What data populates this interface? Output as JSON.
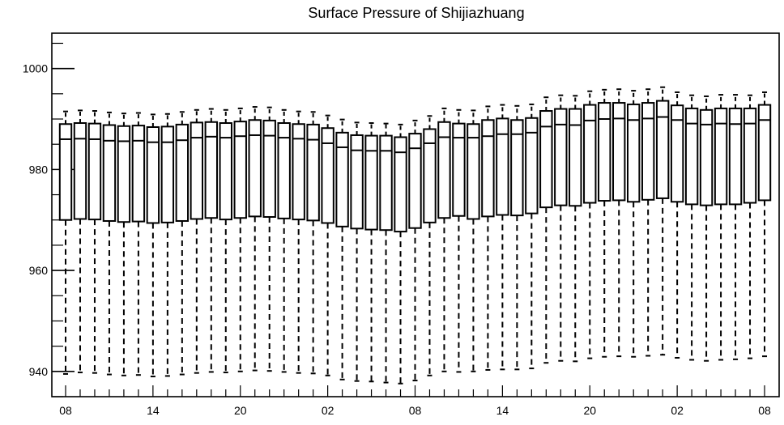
{
  "chart_data": {
    "type": "boxplot",
    "title": "Surface Pressure of Shijiazhuang",
    "xlabel": "",
    "ylabel": "",
    "ylim": [
      935,
      1007
    ],
    "x_tick_labels": [
      "08",
      "14",
      "20",
      "02",
      "08",
      "14",
      "20",
      "02",
      "08"
    ],
    "y_tick_labels": [
      "940",
      "960",
      "980",
      "1000"
    ],
    "y_ticks": [
      940,
      960,
      980,
      1000
    ],
    "grid": false,
    "colors": {
      "box_fill": "#ffffff",
      "stroke": "#000000"
    },
    "boxes": [
      {
        "x": 0,
        "whisker_low": 939.5,
        "q1": 970.0,
        "median": 986.0,
        "q3": 989.0,
        "whisker_high": 991.5
      },
      {
        "x": 1,
        "whisker_low": 939.8,
        "q1": 970.2,
        "median": 986.1,
        "q3": 989.2,
        "whisker_high": 991.7
      },
      {
        "x": 2,
        "whisker_low": 939.7,
        "q1": 970.1,
        "median": 986.0,
        "q3": 989.1,
        "whisker_high": 991.6
      },
      {
        "x": 3,
        "whisker_low": 939.4,
        "q1": 969.8,
        "median": 985.7,
        "q3": 988.8,
        "whisker_high": 991.3
      },
      {
        "x": 4,
        "whisker_low": 939.2,
        "q1": 969.6,
        "median": 985.6,
        "q3": 988.6,
        "whisker_high": 991.1
      },
      {
        "x": 5,
        "whisker_low": 939.3,
        "q1": 969.7,
        "median": 985.7,
        "q3": 988.7,
        "whisker_high": 991.2
      },
      {
        "x": 6,
        "whisker_low": 939.0,
        "q1": 969.4,
        "median": 985.4,
        "q3": 988.4,
        "whisker_high": 990.9
      },
      {
        "x": 7,
        "whisker_low": 939.1,
        "q1": 969.5,
        "median": 985.4,
        "q3": 988.5,
        "whisker_high": 991.0
      },
      {
        "x": 8,
        "whisker_low": 939.4,
        "q1": 969.8,
        "median": 985.8,
        "q3": 988.9,
        "whisker_high": 991.4
      },
      {
        "x": 9,
        "whisker_low": 939.7,
        "q1": 970.2,
        "median": 986.3,
        "q3": 989.3,
        "whisker_high": 991.8
      },
      {
        "x": 10,
        "whisker_low": 939.9,
        "q1": 970.4,
        "median": 986.5,
        "q3": 989.4,
        "whisker_high": 992.0
      },
      {
        "x": 11,
        "whisker_low": 939.8,
        "q1": 970.1,
        "median": 986.3,
        "q3": 989.2,
        "whisker_high": 991.8
      },
      {
        "x": 12,
        "whisker_low": 940.0,
        "q1": 970.4,
        "median": 986.6,
        "q3": 989.5,
        "whisker_high": 992.1
      },
      {
        "x": 13,
        "whisker_low": 940.2,
        "q1": 970.7,
        "median": 986.8,
        "q3": 989.8,
        "whisker_high": 992.4
      },
      {
        "x": 14,
        "whisker_low": 940.1,
        "q1": 970.6,
        "median": 986.7,
        "q3": 989.7,
        "whisker_high": 992.3
      },
      {
        "x": 15,
        "whisker_low": 939.9,
        "q1": 970.3,
        "median": 986.3,
        "q3": 989.2,
        "whisker_high": 991.8
      },
      {
        "x": 16,
        "whisker_low": 939.7,
        "q1": 970.1,
        "median": 986.1,
        "q3": 989.0,
        "whisker_high": 991.5
      },
      {
        "x": 17,
        "whisker_low": 939.6,
        "q1": 969.9,
        "median": 985.9,
        "q3": 988.9,
        "whisker_high": 991.4
      },
      {
        "x": 18,
        "whisker_low": 939.2,
        "q1": 969.4,
        "median": 985.2,
        "q3": 988.2,
        "whisker_high": 990.7
      },
      {
        "x": 19,
        "whisker_low": 938.4,
        "q1": 968.7,
        "median": 984.4,
        "q3": 987.3,
        "whisker_high": 989.9
      },
      {
        "x": 20,
        "whisker_low": 938.1,
        "q1": 968.3,
        "median": 983.8,
        "q3": 986.8,
        "whisker_high": 989.3
      },
      {
        "x": 21,
        "whisker_low": 938.0,
        "q1": 968.1,
        "median": 983.7,
        "q3": 986.7,
        "whisker_high": 989.2
      },
      {
        "x": 22,
        "whisker_low": 937.8,
        "q1": 968.0,
        "median": 983.7,
        "q3": 986.7,
        "whisker_high": 989.1
      },
      {
        "x": 23,
        "whisker_low": 937.6,
        "q1": 967.7,
        "median": 983.4,
        "q3": 986.4,
        "whisker_high": 988.9
      },
      {
        "x": 24,
        "whisker_low": 938.2,
        "q1": 968.4,
        "median": 984.2,
        "q3": 987.1,
        "whisker_high": 989.7
      },
      {
        "x": 25,
        "whisker_low": 939.2,
        "q1": 969.5,
        "median": 985.2,
        "q3": 988.0,
        "whisker_high": 990.6
      },
      {
        "x": 26,
        "whisker_low": 940.0,
        "q1": 970.4,
        "median": 986.4,
        "q3": 989.4,
        "whisker_high": 992.1
      },
      {
        "x": 27,
        "whisker_low": 939.9,
        "q1": 970.8,
        "median": 986.3,
        "q3": 989.1,
        "whisker_high": 991.8
      },
      {
        "x": 28,
        "whisker_low": 940.0,
        "q1": 970.2,
        "median": 986.3,
        "q3": 989.0,
        "whisker_high": 991.7
      },
      {
        "x": 29,
        "whisker_low": 940.3,
        "q1": 970.7,
        "median": 986.6,
        "q3": 989.8,
        "whisker_high": 992.5
      },
      {
        "x": 30,
        "whisker_low": 940.4,
        "q1": 971.0,
        "median": 987.0,
        "q3": 990.1,
        "whisker_high": 992.8
      },
      {
        "x": 31,
        "whisker_low": 940.4,
        "q1": 970.9,
        "median": 987.0,
        "q3": 989.8,
        "whisker_high": 992.6
      },
      {
        "x": 32,
        "whisker_low": 940.6,
        "q1": 971.3,
        "median": 987.3,
        "q3": 990.2,
        "whisker_high": 992.9
      },
      {
        "x": 33,
        "whisker_low": 941.7,
        "q1": 972.5,
        "median": 988.5,
        "q3": 991.6,
        "whisker_high": 994.3
      },
      {
        "x": 34,
        "whisker_low": 942.1,
        "q1": 972.9,
        "median": 988.9,
        "q3": 992.0,
        "whisker_high": 994.7
      },
      {
        "x": 35,
        "whisker_low": 942.0,
        "q1": 972.8,
        "median": 988.8,
        "q3": 992.0,
        "whisker_high": 994.6
      },
      {
        "x": 36,
        "whisker_low": 942.6,
        "q1": 973.4,
        "median": 989.7,
        "q3": 992.8,
        "whisker_high": 995.5
      },
      {
        "x": 37,
        "whisker_low": 942.9,
        "q1": 973.8,
        "median": 990.0,
        "q3": 993.2,
        "whisker_high": 995.8
      },
      {
        "x": 38,
        "whisker_low": 943.0,
        "q1": 973.9,
        "median": 990.1,
        "q3": 993.2,
        "whisker_high": 995.9
      },
      {
        "x": 39,
        "whisker_low": 942.9,
        "q1": 973.6,
        "median": 989.8,
        "q3": 992.9,
        "whisker_high": 995.6
      },
      {
        "x": 40,
        "whisker_low": 943.1,
        "q1": 974.0,
        "median": 990.1,
        "q3": 993.2,
        "whisker_high": 995.9
      },
      {
        "x": 41,
        "whisker_low": 943.3,
        "q1": 974.3,
        "median": 990.4,
        "q3": 993.6,
        "whisker_high": 996.3
      },
      {
        "x": 42,
        "whisker_low": 942.7,
        "q1": 973.6,
        "median": 989.8,
        "q3": 992.7,
        "whisker_high": 995.3
      },
      {
        "x": 43,
        "whisker_low": 942.3,
        "q1": 973.1,
        "median": 989.1,
        "q3": 992.1,
        "whisker_high": 994.7
      },
      {
        "x": 44,
        "whisker_low": 942.1,
        "q1": 972.9,
        "median": 988.9,
        "q3": 991.8,
        "whisker_high": 994.5
      },
      {
        "x": 45,
        "whisker_low": 942.3,
        "q1": 973.1,
        "median": 989.1,
        "q3": 992.1,
        "whisker_high": 994.8
      },
      {
        "x": 46,
        "whisker_low": 942.4,
        "q1": 973.1,
        "median": 989.0,
        "q3": 992.1,
        "whisker_high": 994.8
      },
      {
        "x": 47,
        "whisker_low": 942.6,
        "q1": 973.4,
        "median": 989.1,
        "q3": 992.1,
        "whisker_high": 994.7
      },
      {
        "x": 48,
        "whisker_low": 943.0,
        "q1": 973.9,
        "median": 989.8,
        "q3": 992.8,
        "whisker_high": 995.3
      }
    ]
  }
}
